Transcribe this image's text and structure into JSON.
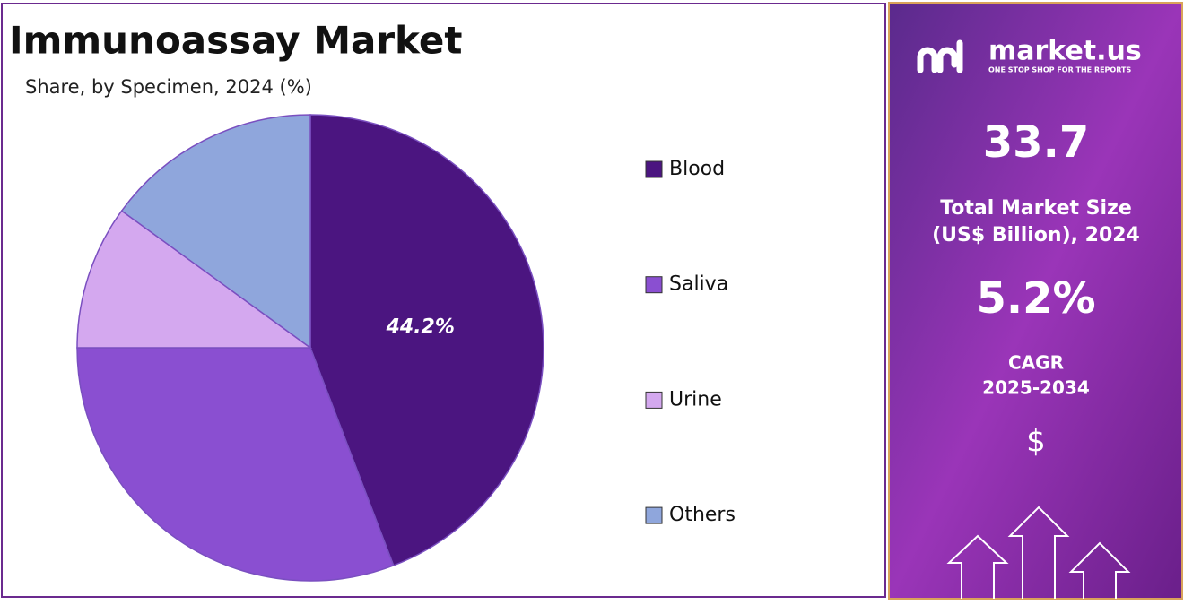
{
  "chart_data": {
    "type": "pie",
    "title": "Immunoassay Market",
    "subtitle": "Share, by Specimen, 2024 (%)",
    "categories": [
      "Blood",
      "Saliva",
      "Urine",
      "Others"
    ],
    "values": [
      44.2,
      30.8,
      10,
      15
    ],
    "value_labels": [
      "44.2%",
      null,
      null,
      null
    ],
    "colors": [
      "#4b1580",
      "#8a4fd1",
      "#d4a8ef",
      "#8fa6dc"
    ],
    "legend": "right"
  },
  "side_panel": {
    "brand": "market.us",
    "tagline": "ONE STOP SHOP FOR THE REPORTS",
    "market_size": "33.7",
    "market_size_label": [
      "Total Market Size",
      "(US$ Billion), 2024"
    ],
    "cagr": "5.2%",
    "cagr_label": [
      "CAGR",
      "2025-2034"
    ],
    "currency_icon": "$"
  }
}
